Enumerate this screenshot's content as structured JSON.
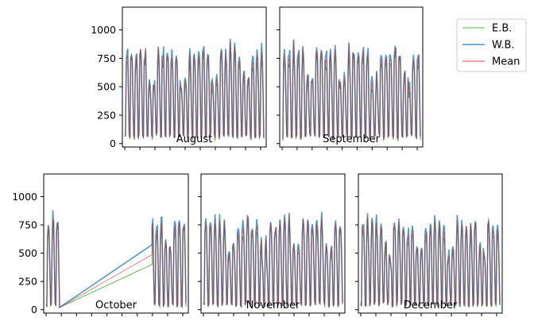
{
  "chart_data": {
    "type": "line",
    "legend": {
      "placement": "top-right",
      "entries": [
        {
          "name": "E.B.",
          "color": "#2ca02c",
          "weight": "thin"
        },
        {
          "name": "W.B.",
          "color": "#1f77b4",
          "weight": "thick"
        },
        {
          "name": "Mean",
          "color": "#d62728",
          "weight": "thin"
        }
      ]
    },
    "yticks": [
      0,
      250,
      500,
      750,
      1000
    ],
    "ylim": [
      -30,
      1200
    ],
    "grid": false,
    "panels": [
      {
        "label": "August",
        "days": 31,
        "base": 820,
        "amp": 950,
        "min": 50,
        "notes": "daily cycle, full month"
      },
      {
        "label": "September",
        "days": 30,
        "base": 830,
        "amp": 960,
        "min": 50,
        "notes": "daily cycle, full month"
      },
      {
        "label": "October",
        "days": 31,
        "base": 800,
        "amp": 960,
        "min": 30,
        "gap": {
          "from_day": 2.8,
          "to_day": 23.5,
          "start_value": 20,
          "eb_end": 400,
          "wb_end": 575
        }
      },
      {
        "label": "November",
        "days": 30,
        "base": 780,
        "amp": 980,
        "min": 30,
        "notes": "daily cycle, full month"
      },
      {
        "label": "December",
        "days": 31,
        "base": 760,
        "amp": 960,
        "min": 30,
        "notes": "daily cycle, full month"
      }
    ]
  }
}
